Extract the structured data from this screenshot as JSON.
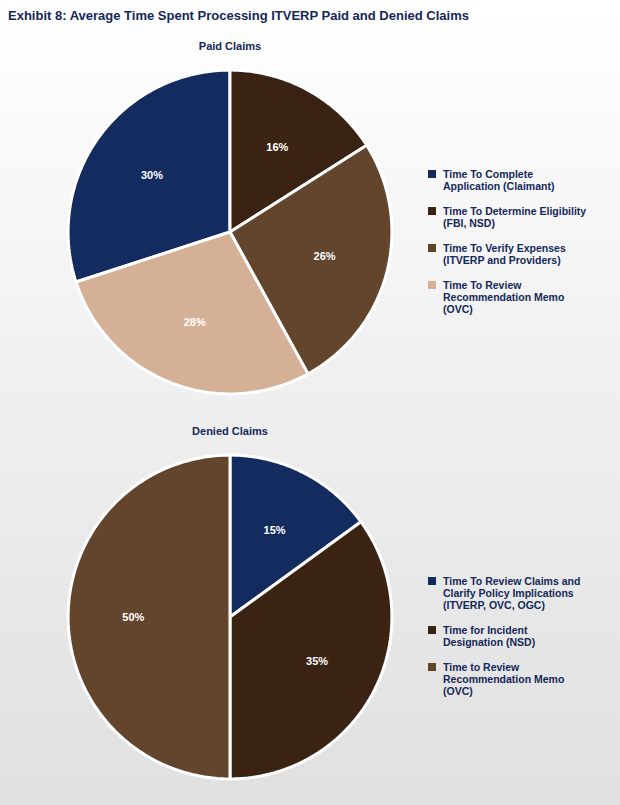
{
  "title": "Exhibit 8: Average Time Spent Processing ITVERP Paid and Denied Claims",
  "chart_data": [
    {
      "type": "pie",
      "title": "Paid Claims",
      "categories": [
        "Time To Complete Application (Claimant)",
        "Time To Determine Eligibility (FBI, NSD)",
        "Time To Verify Expenses (ITVERP and Providers)",
        "Time To Review Recommendation Memo (OVC)"
      ],
      "values": [
        30,
        16,
        26,
        28
      ],
      "value_labels": [
        "30%",
        "16%",
        "26%",
        "28%"
      ],
      "colors": [
        "#142b5f",
        "#3b2314",
        "#62452c",
        "#d4b096"
      ],
      "data_labels": true,
      "legend": "right"
    },
    {
      "type": "pie",
      "title": "Denied Claims",
      "categories": [
        "Time To Review Claims and Clarify Policy Implications (ITVERP, OVC, OGC)",
        "Time for Incident Designation (NSD)",
        "Time to Review Recommendation Memo (OVC)"
      ],
      "values": [
        15,
        35,
        50
      ],
      "value_labels": [
        "15%",
        "35%",
        "50%"
      ],
      "colors": [
        "#142b5f",
        "#3b2314",
        "#62452c"
      ],
      "data_labels": true,
      "legend": "right"
    }
  ]
}
